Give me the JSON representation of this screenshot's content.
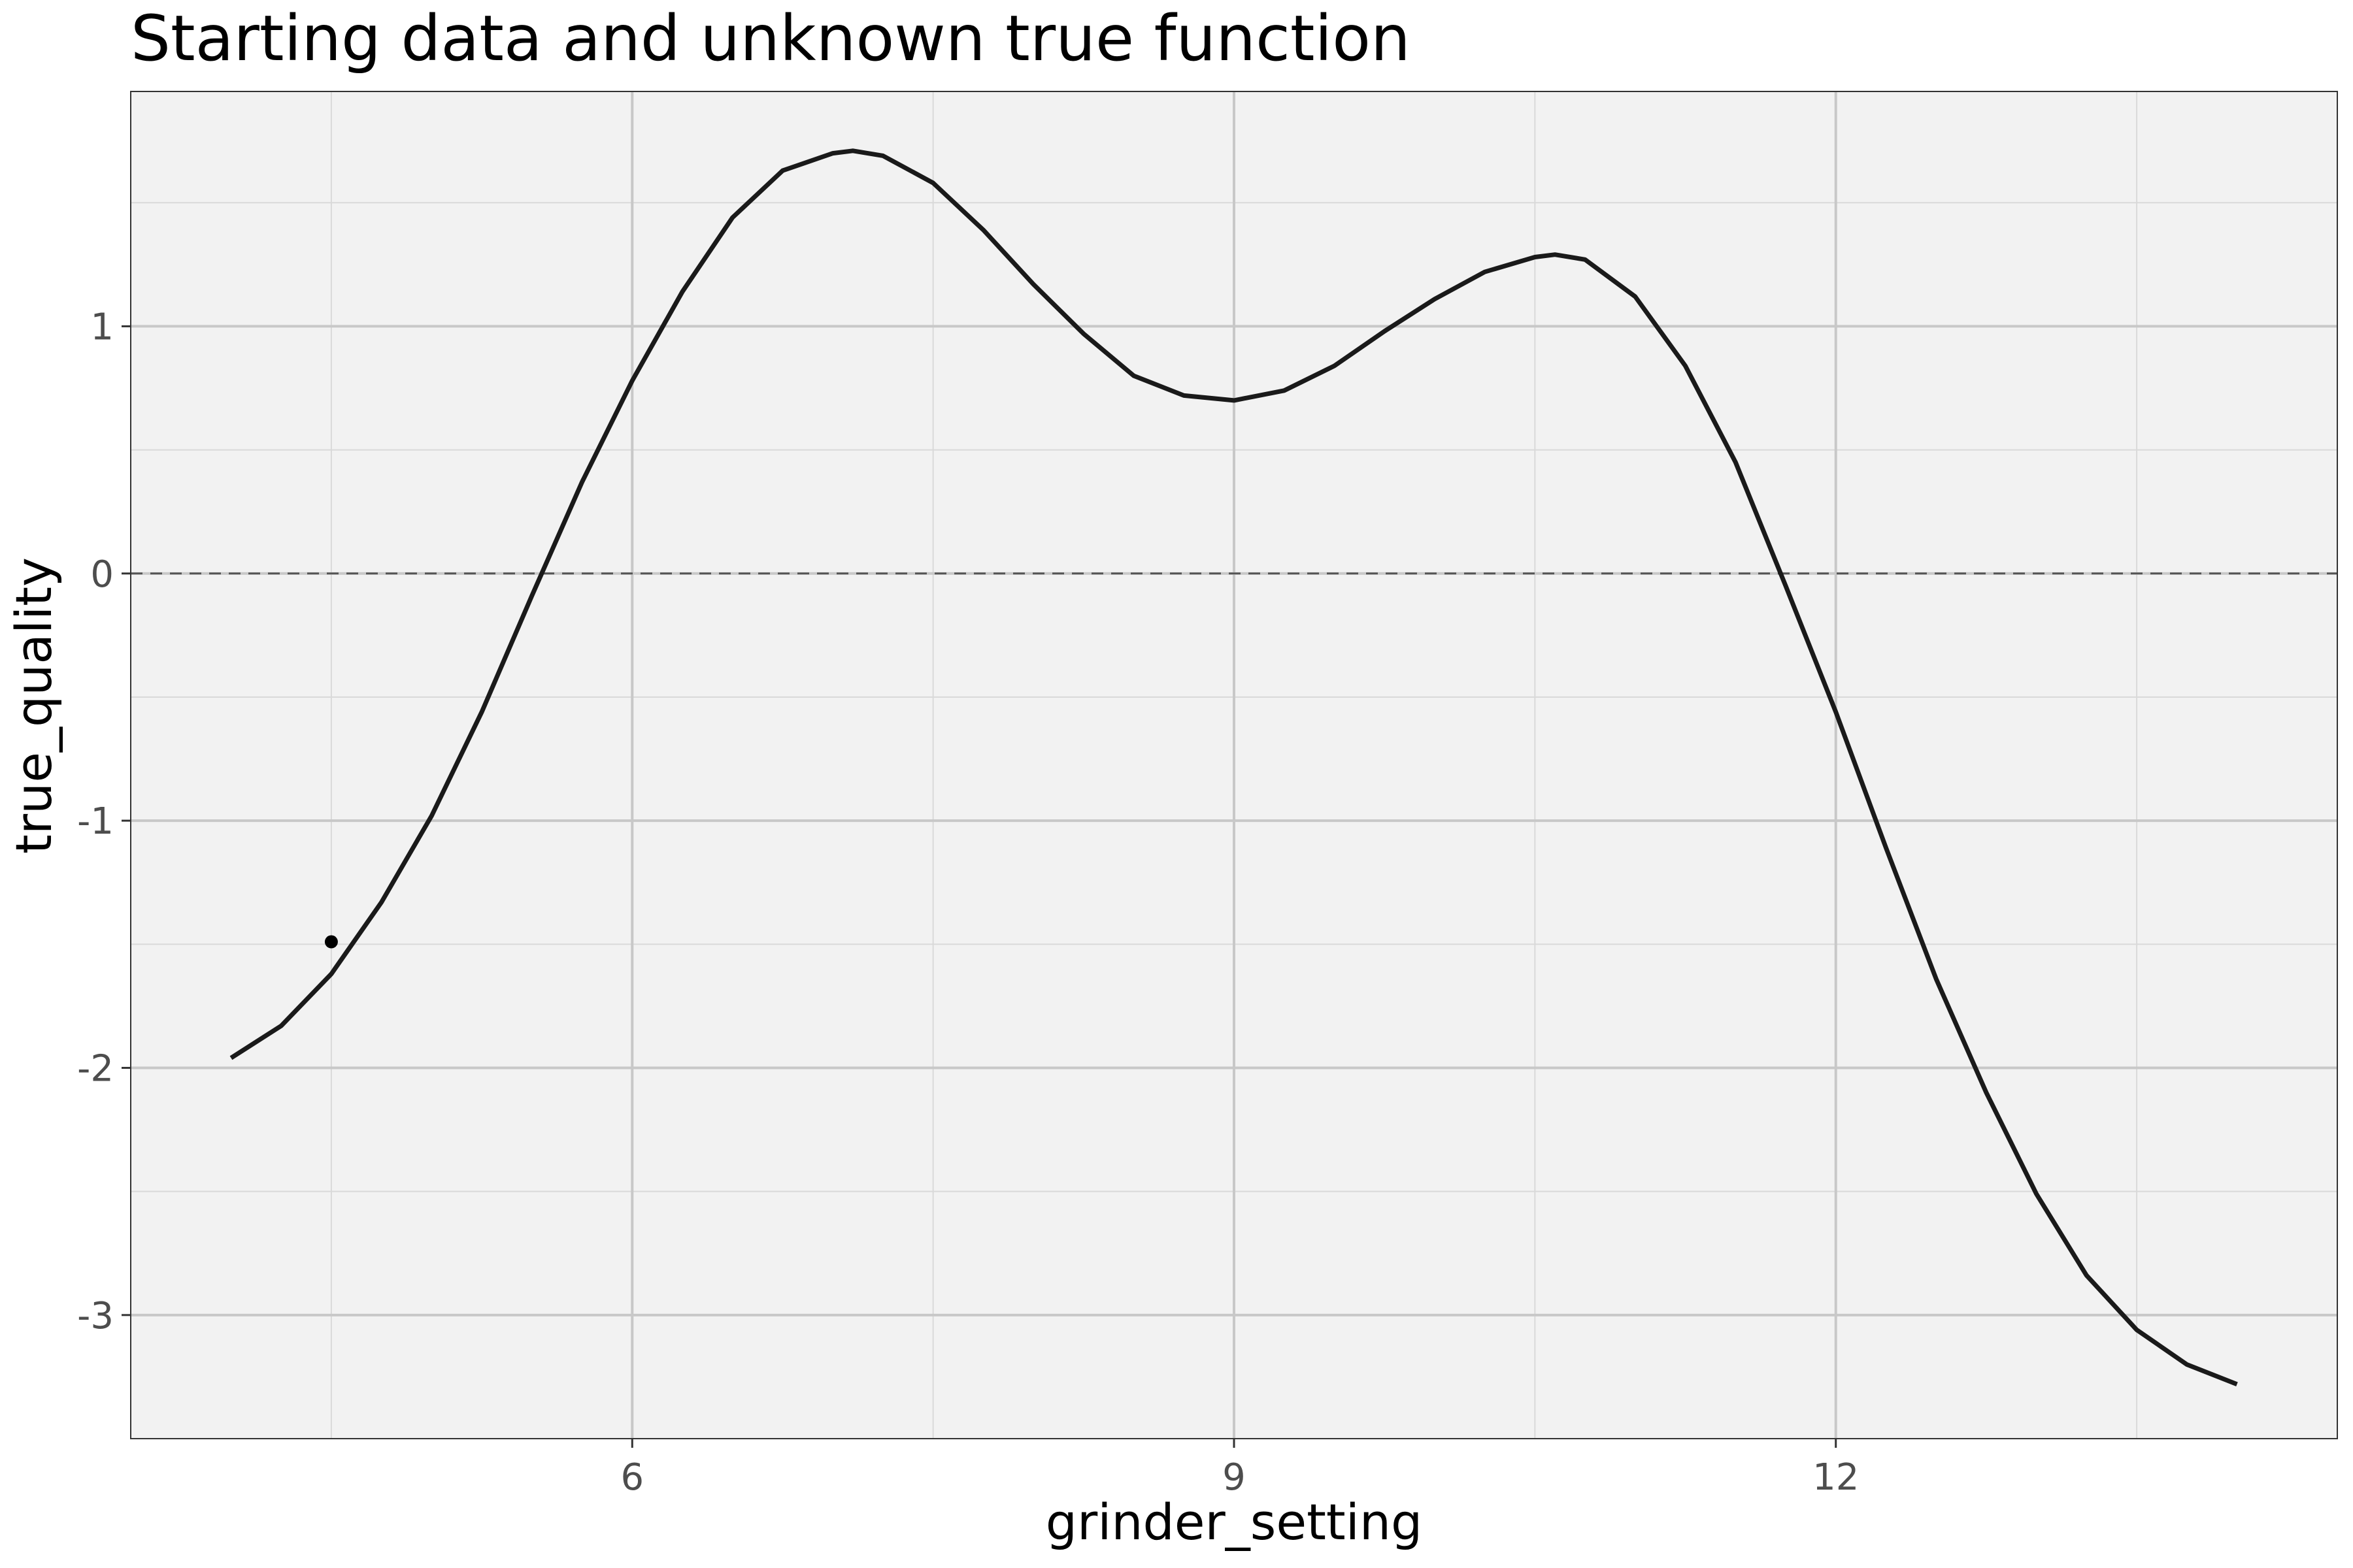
{
  "chart_data": {
    "type": "line",
    "title": "Starting data and unknown true function",
    "xlabel": "grinder_setting",
    "ylabel": "true_quality",
    "xlim": [
      3.5,
      14.5
    ],
    "ylim": [
      -3.5,
      1.95
    ],
    "x_ticks": [
      6,
      9,
      12
    ],
    "x_tick_labels": [
      "6",
      "9",
      "12"
    ],
    "y_ticks": [
      1,
      0,
      -1,
      -2,
      -3
    ],
    "y_tick_labels": [
      "1",
      "0",
      "-1",
      "-2",
      "-3"
    ],
    "x_minor_ticks": [
      4.5,
      7.5,
      10.5,
      13.5
    ],
    "y_minor_ticks": [
      1.5,
      0.5,
      -0.5,
      -1.5,
      -2.5
    ],
    "reference_line": {
      "y": 0,
      "style": "dashed"
    },
    "grid": true,
    "background": "#f2f2f2",
    "line_color": "#1a1a1a",
    "series": [
      {
        "kind": "line",
        "x": [
          4.0,
          4.25,
          4.5,
          4.75,
          5.0,
          5.25,
          5.5,
          5.75,
          6.0,
          6.25,
          6.5,
          6.75,
          7.0,
          7.1,
          7.25,
          7.5,
          7.75,
          8.0,
          8.25,
          8.5,
          8.75,
          9.0,
          9.25,
          9.5,
          9.75,
          10.0,
          10.25,
          10.5,
          10.6,
          10.75,
          11.0,
          11.25,
          11.5,
          11.75,
          12.0,
          12.25,
          12.5,
          12.75,
          13.0,
          13.25,
          13.5,
          13.75,
          14.0
        ],
        "y": [
          -1.96,
          -1.83,
          -1.62,
          -1.33,
          -0.98,
          -0.56,
          -0.09,
          0.37,
          0.78,
          1.14,
          1.44,
          1.63,
          1.7,
          1.71,
          1.69,
          1.58,
          1.39,
          1.17,
          0.97,
          0.8,
          0.72,
          0.7,
          0.74,
          0.84,
          0.98,
          1.11,
          1.22,
          1.28,
          1.29,
          1.27,
          1.12,
          0.84,
          0.45,
          -0.05,
          -0.56,
          -1.11,
          -1.64,
          -2.1,
          -2.51,
          -2.84,
          -3.06,
          -3.2,
          -3.28
        ]
      },
      {
        "kind": "point",
        "x": [
          4.5
        ],
        "y": [
          -1.49
        ]
      }
    ]
  }
}
